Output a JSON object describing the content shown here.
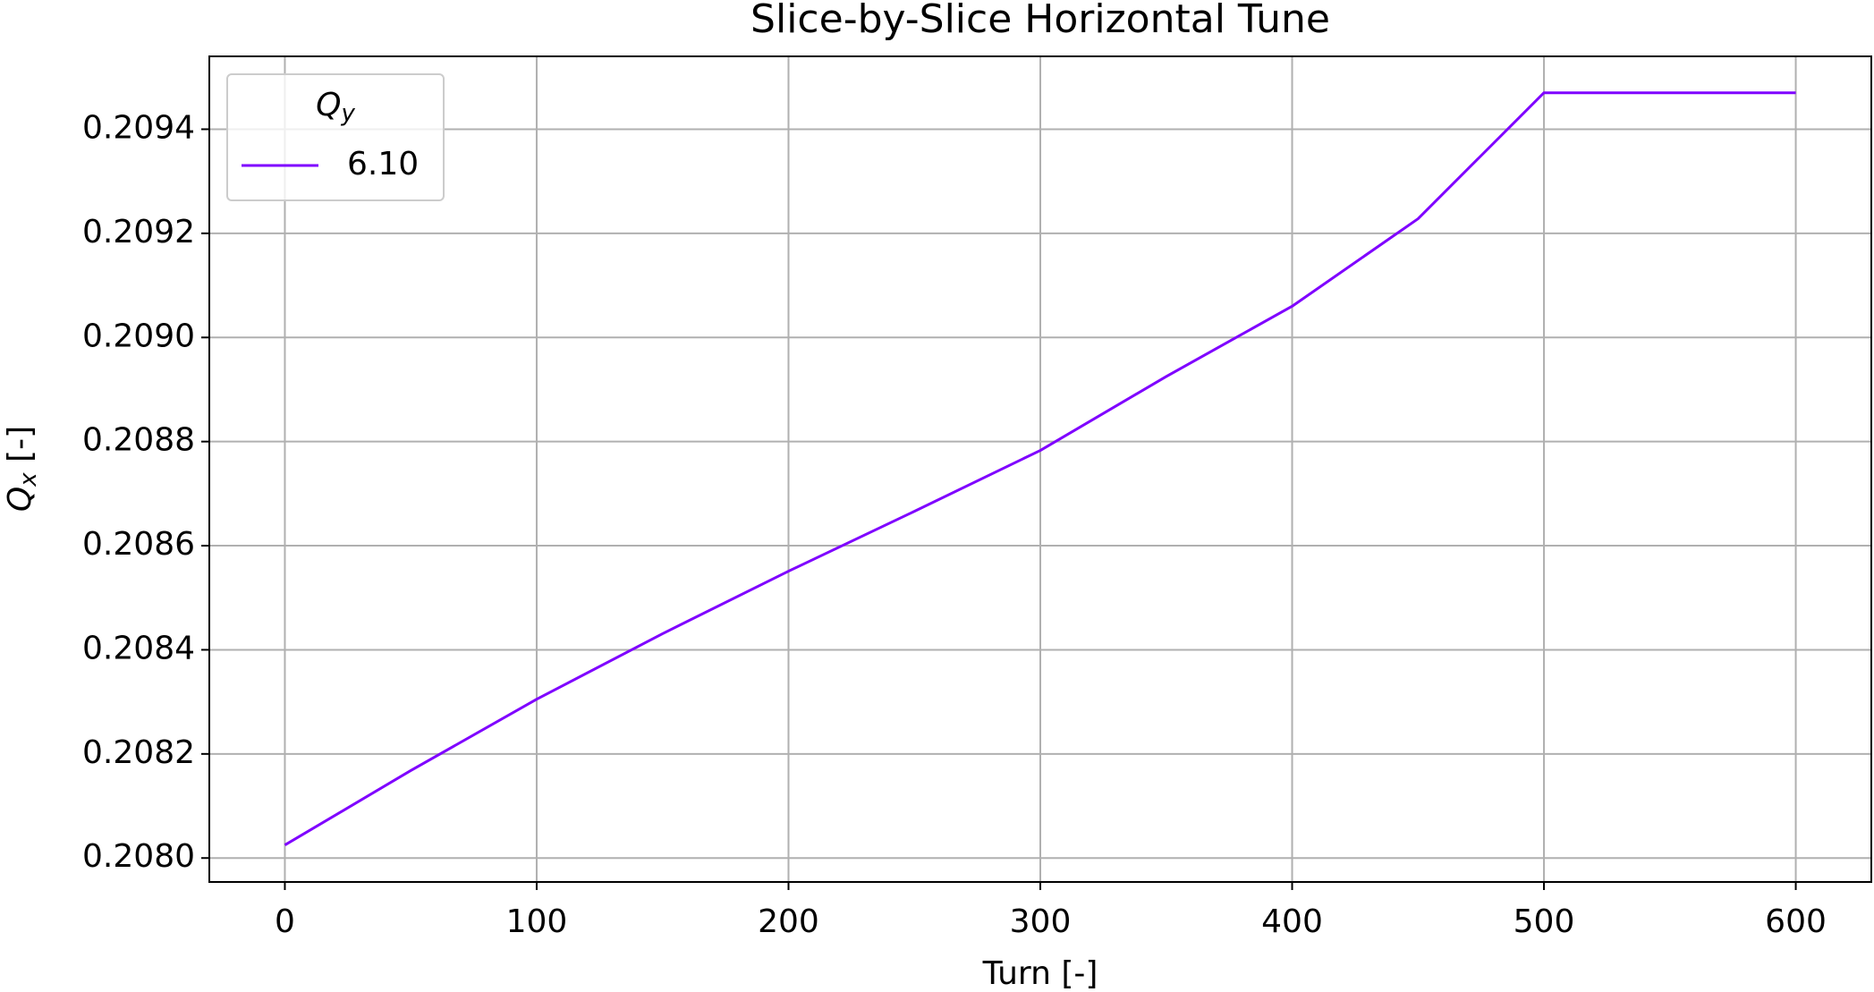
{
  "chart_data": {
    "type": "line",
    "title": "Slice-by-Slice Horizontal Tune",
    "xlabel": "Turn [-]",
    "ylabel": {
      "symbol": "Q",
      "subscript": "x",
      "unit": " [-]"
    },
    "legend_title": {
      "symbol": "Q",
      "subscript": "y"
    },
    "legend": "upper left",
    "grid": true,
    "x": [
      0,
      50,
      100,
      150,
      200,
      250,
      300,
      350,
      400,
      450,
      500,
      550,
      600
    ],
    "series": [
      {
        "name": "6.10",
        "color": "#7f00ff",
        "values": [
          0.208025,
          0.208168,
          0.208305,
          0.208431,
          0.208551,
          0.208666,
          0.208783,
          0.208925,
          0.20906,
          0.209228,
          0.20947,
          0.20947,
          0.20947
        ]
      }
    ],
    "xlim": [
      -30,
      630
    ],
    "ylim": [
      0.207954,
      0.20954
    ],
    "xticks": [
      0,
      100,
      200,
      300,
      400,
      500,
      600
    ],
    "yticks": [
      {
        "value": 0.208,
        "label": "0.2080"
      },
      {
        "value": 0.2082,
        "label": "0.2082"
      },
      {
        "value": 0.2084,
        "label": "0.2084"
      },
      {
        "value": 0.2086,
        "label": "0.2086"
      },
      {
        "value": 0.2088,
        "label": "0.2088"
      },
      {
        "value": 0.209,
        "label": "0.2090"
      },
      {
        "value": 0.2092,
        "label": "0.2092"
      },
      {
        "value": 0.2094,
        "label": "0.2094"
      }
    ]
  }
}
